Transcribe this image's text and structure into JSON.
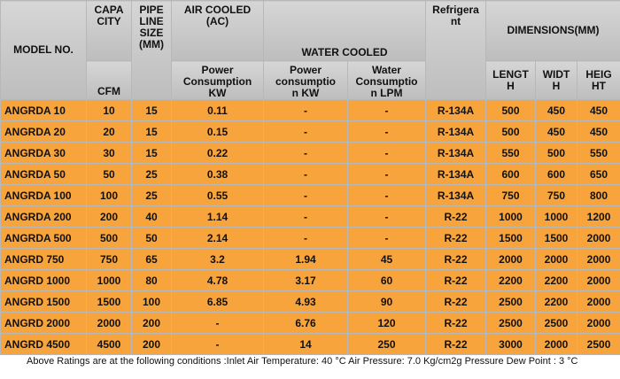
{
  "table": {
    "header": {
      "model": "MODEL NO.",
      "capacity": "CAPA\nCITY",
      "capacity_unit": "CFM",
      "pipe": "PIPE\nLINE\nSIZE\n(MM)",
      "air_cooled": "AIR COOLED\n(AC)",
      "air_power": "Power\nConsumption\nKW",
      "water_cooled": "WATER COOLED",
      "water_power": "Power\nconsumptio\nn KW",
      "water_lpm": "Water\nConsumptio\nn LPM",
      "refrigerant": "Refrigera\nnt",
      "dimensions": "DIMENSIONS(MM)",
      "length": "LENGT\nH",
      "width": "WIDT\nH",
      "height": "HEIG\nHT"
    },
    "rows": [
      [
        "ANGRDA 10",
        "10",
        "15",
        "0.11",
        "-",
        "-",
        "R-134A",
        "500",
        "450",
        "450"
      ],
      [
        "ANGRDA 20",
        "20",
        "15",
        "0.15",
        "-",
        "-",
        "R-134A",
        "500",
        "450",
        "450"
      ],
      [
        "ANGRDA 30",
        "30",
        "15",
        "0.22",
        "-",
        "-",
        "R-134A",
        "550",
        "500",
        "550"
      ],
      [
        "ANGRDA 50",
        "50",
        "25",
        "0.38",
        "-",
        "-",
        "R-134A",
        "600",
        "600",
        "650"
      ],
      [
        "ANGRDA 100",
        "100",
        "25",
        "0.55",
        "-",
        "-",
        "R-134A",
        "750",
        "750",
        "800"
      ],
      [
        "ANGRDA 200",
        "200",
        "40",
        "1.14",
        "-",
        "-",
        "R-22",
        "1000",
        "1000",
        "1200"
      ],
      [
        "ANGRDA 500",
        "500",
        "50",
        "2.14",
        "-",
        "-",
        "R-22",
        "1500",
        "1500",
        "2000"
      ],
      [
        "ANGRD 750",
        "750",
        "65",
        "3.2",
        "1.94",
        "45",
        "R-22",
        "2000",
        "2000",
        "2000"
      ],
      [
        "ANGRD 1000",
        "1000",
        "80",
        "4.78",
        "3.17",
        "60",
        "R-22",
        "2200",
        "2200",
        "2000"
      ],
      [
        "ANGRD 1500",
        "1500",
        "100",
        "6.85",
        "4.93",
        "90",
        "R-22",
        "2500",
        "2200",
        "2000"
      ],
      [
        "ANGRD 2000",
        "2000",
        "200",
        "-",
        "6.76",
        "120",
        "R-22",
        "2500",
        "2500",
        "2000"
      ],
      [
        "ANGRD 4500",
        "4500",
        "200",
        "-",
        "14",
        "250",
        "R-22",
        "3000",
        "2000",
        "2500"
      ]
    ]
  },
  "footer": "Above Ratings are at the following conditions :Inlet Air Temperature: 40 °C Air Pressure: 7.0 Kg/cm2g  Pressure Dew Point : 3 °C"
}
